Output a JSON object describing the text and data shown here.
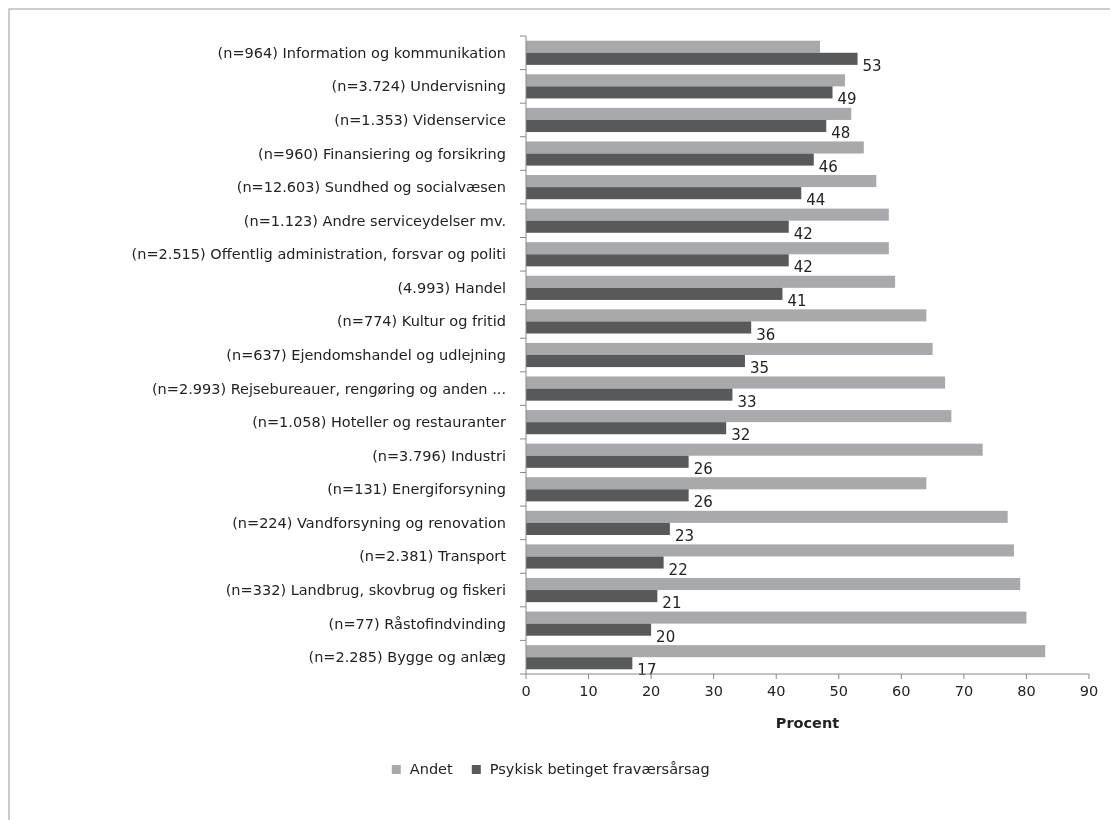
{
  "chart_data": {
    "type": "bar",
    "orientation": "horizontal",
    "xlabel": "Procent",
    "categories": [
      "(n=964) Information og kommunikation",
      "(n=3.724) Undervisning",
      "(n=1.353) Videnservice",
      "(n=960) Finansiering og forsikring",
      "(n=12.603) Sundhed og socialvæsen",
      "(n=1.123) Andre serviceydelser mv.",
      "(n=2.515) Offentlig administration, forsvar og politi",
      "(4.993) Handel",
      "(n=774) Kultur og fritid",
      "(n=637) Ejendomshandel og udlejning",
      "(n=2.993) Rejsebureauer, rengøring og anden ...",
      "(n=1.058) Hoteller og restauranter",
      "(n=3.796) Industri",
      "(n=131) Energiforsyning",
      "(n=224) Vandforsyning og renovation",
      "(n=2.381) Transport",
      "(n=332) Landbrug, skovbrug og fiskeri",
      "(n=77) Råstofindvinding",
      "(n=2.285) Bygge og anlæg"
    ],
    "series": [
      {
        "name": "Andet",
        "color": "#a7a9ac",
        "values": [
          47,
          51,
          52,
          54,
          56,
          58,
          58,
          59,
          64,
          65,
          67,
          68,
          73,
          64,
          77,
          78,
          79,
          80,
          83
        ]
      },
      {
        "name": "Psykisk betinget fraværsårsag",
        "color": "#58595b",
        "values": [
          53,
          49,
          48,
          46,
          44,
          42,
          42,
          41,
          36,
          35,
          33,
          32,
          26,
          26,
          23,
          22,
          21,
          20,
          17
        ],
        "value_labels": [
          "53",
          "49",
          "48",
          "46",
          "44",
          "42",
          "42",
          "41",
          "36",
          "35",
          "33",
          "32",
          "26",
          "26",
          "23",
          "22",
          "21",
          "20",
          "17"
        ]
      }
    ],
    "xlim": [
      0,
      90
    ],
    "xticks": [
      0,
      10,
      20,
      30,
      40,
      50,
      60,
      70,
      80,
      90
    ],
    "grid": false,
    "legend": "bottom"
  }
}
